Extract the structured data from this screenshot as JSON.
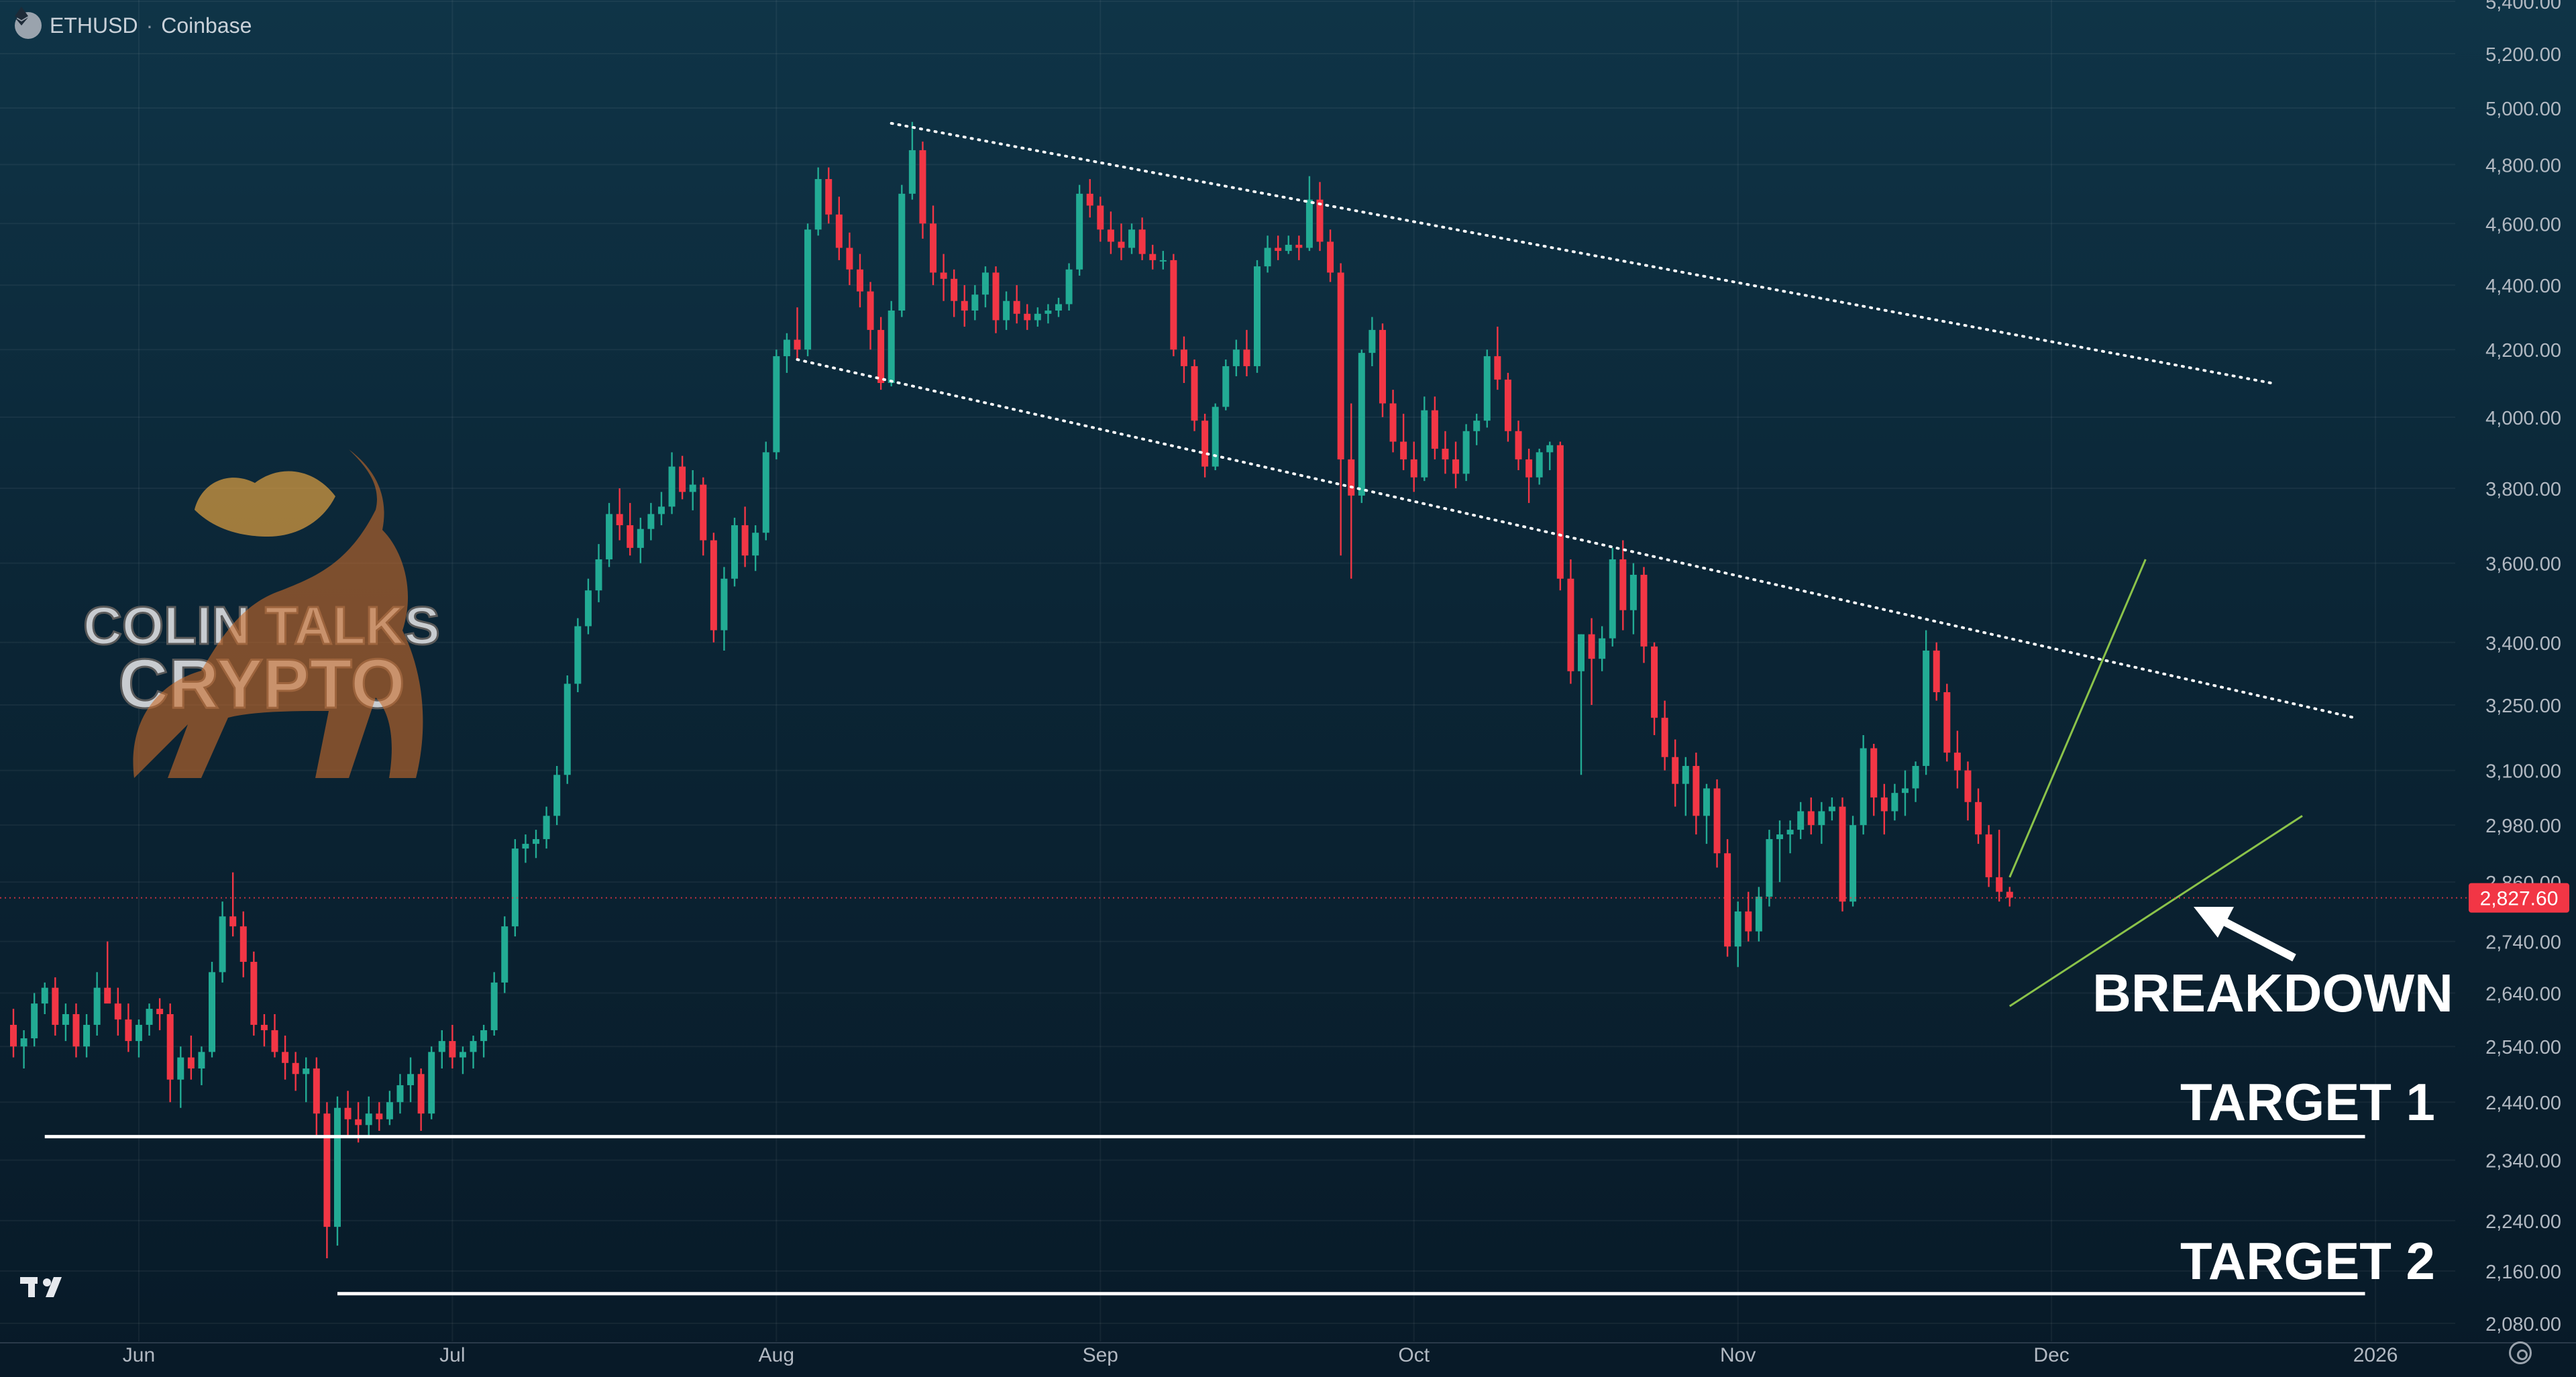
{
  "header": {
    "symbol": "ETHUSD",
    "separator": "·",
    "exchange": "Coinbase",
    "icon": "ethereum-icon"
  },
  "watermark": {
    "line1": "COLIN TALKS",
    "line2": "CRYPTO"
  },
  "annotations": {
    "breakdown": "BREAKDOWN",
    "target1": "TARGET 1",
    "target2": "TARGET 2"
  },
  "colors": {
    "up": "#22ab94",
    "down": "#f23645",
    "wedge": "#8bc34a",
    "price_tag": "#f23645"
  },
  "chart_data": {
    "type": "candlestick",
    "title": "",
    "y_scale": "log",
    "ylim": [
      2080,
      5400
    ],
    "current_price": 2827.6,
    "current_price_label": "2,827.60",
    "y_ticks": [
      5400,
      5200,
      5000,
      4800,
      4600,
      4400,
      4200,
      4000,
      3800,
      3600,
      3400,
      3250,
      3100,
      2980,
      2860,
      2740,
      2640,
      2540,
      2440,
      2340,
      2240,
      2160,
      2080
    ],
    "y_tick_labels": [
      "5,400.00",
      "5,200.00",
      "5,000.00",
      "4,800.00",
      "4,600.00",
      "4,400.00",
      "4,200.00",
      "4,000.00",
      "3,800.00",
      "3,600.00",
      "3,400.00",
      "3,250.00",
      "3,100.00",
      "2,980.00",
      "2,860.00",
      "2,740.00",
      "2,640.00",
      "2,540.00",
      "2,440.00",
      "2,340.00",
      "2,240.00",
      "2,160.00",
      "2,080.00"
    ],
    "x_labels": [
      {
        "label": "Jun",
        "date": "2025-06-01"
      },
      {
        "label": "Jul",
        "date": "2025-07-01"
      },
      {
        "label": "Aug",
        "date": "2025-08-01"
      },
      {
        "label": "Sep",
        "date": "2025-09-01"
      },
      {
        "label": "Oct",
        "date": "2025-10-01"
      },
      {
        "label": "Nov",
        "date": "2025-11-01"
      },
      {
        "label": "Dec",
        "date": "2025-12-01"
      },
      {
        "label": "2026",
        "date": "2026-01-01"
      }
    ],
    "start_date": "2025-05-20",
    "ohlc": [
      [
        2580,
        2610,
        2520,
        2540
      ],
      [
        2540,
        2570,
        2500,
        2555
      ],
      [
        2555,
        2640,
        2540,
        2620
      ],
      [
        2620,
        2660,
        2600,
        2650
      ],
      [
        2650,
        2670,
        2560,
        2580
      ],
      [
        2580,
        2620,
        2550,
        2600
      ],
      [
        2600,
        2620,
        2520,
        2540
      ],
      [
        2540,
        2600,
        2520,
        2580
      ],
      [
        2580,
        2680,
        2560,
        2650
      ],
      [
        2650,
        2740,
        2630,
        2620
      ],
      [
        2620,
        2650,
        2560,
        2590
      ],
      [
        2590,
        2620,
        2530,
        2550
      ],
      [
        2550,
        2590,
        2520,
        2580
      ],
      [
        2580,
        2620,
        2560,
        2610
      ],
      [
        2610,
        2630,
        2570,
        2600
      ],
      [
        2600,
        2620,
        2440,
        2480
      ],
      [
        2480,
        2540,
        2430,
        2520
      ],
      [
        2520,
        2560,
        2480,
        2500
      ],
      [
        2500,
        2540,
        2470,
        2530
      ],
      [
        2530,
        2700,
        2520,
        2680
      ],
      [
        2680,
        2820,
        2660,
        2790
      ],
      [
        2790,
        2880,
        2750,
        2770
      ],
      [
        2770,
        2800,
        2670,
        2700
      ],
      [
        2700,
        2720,
        2560,
        2580
      ],
      [
        2580,
        2600,
        2540,
        2570
      ],
      [
        2570,
        2600,
        2520,
        2530
      ],
      [
        2530,
        2560,
        2480,
        2510
      ],
      [
        2510,
        2530,
        2460,
        2490
      ],
      [
        2490,
        2520,
        2440,
        2500
      ],
      [
        2500,
        2520,
        2380,
        2420
      ],
      [
        2420,
        2440,
        2180,
        2230
      ],
      [
        2230,
        2450,
        2200,
        2430
      ],
      [
        2430,
        2460,
        2380,
        2410
      ],
      [
        2410,
        2440,
        2370,
        2400
      ],
      [
        2400,
        2450,
        2380,
        2420
      ],
      [
        2420,
        2440,
        2390,
        2410
      ],
      [
        2410,
        2460,
        2400,
        2440
      ],
      [
        2440,
        2490,
        2420,
        2470
      ],
      [
        2470,
        2520,
        2440,
        2490
      ],
      [
        2490,
        2500,
        2390,
        2420
      ],
      [
        2420,
        2540,
        2410,
        2530
      ],
      [
        2530,
        2570,
        2500,
        2550
      ],
      [
        2550,
        2580,
        2500,
        2520
      ],
      [
        2520,
        2540,
        2490,
        2530
      ],
      [
        2530,
        2560,
        2500,
        2550
      ],
      [
        2550,
        2580,
        2520,
        2570
      ],
      [
        2570,
        2680,
        2560,
        2660
      ],
      [
        2660,
        2790,
        2640,
        2770
      ],
      [
        2770,
        2950,
        2750,
        2930
      ],
      [
        2930,
        2960,
        2900,
        2940
      ],
      [
        2940,
        2970,
        2910,
        2950
      ],
      [
        2950,
        3020,
        2930,
        3000
      ],
      [
        3000,
        3110,
        2980,
        3090
      ],
      [
        3090,
        3320,
        3070,
        3300
      ],
      [
        3300,
        3460,
        3280,
        3440
      ],
      [
        3440,
        3560,
        3420,
        3530
      ],
      [
        3530,
        3650,
        3500,
        3610
      ],
      [
        3610,
        3760,
        3590,
        3730
      ],
      [
        3730,
        3800,
        3660,
        3700
      ],
      [
        3700,
        3760,
        3620,
        3640
      ],
      [
        3640,
        3720,
        3600,
        3690
      ],
      [
        3690,
        3760,
        3660,
        3730
      ],
      [
        3730,
        3790,
        3700,
        3750
      ],
      [
        3750,
        3900,
        3730,
        3860
      ],
      [
        3860,
        3890,
        3770,
        3790
      ],
      [
        3790,
        3850,
        3740,
        3810
      ],
      [
        3810,
        3830,
        3620,
        3660
      ],
      [
        3660,
        3680,
        3400,
        3430
      ],
      [
        3430,
        3590,
        3380,
        3560
      ],
      [
        3560,
        3720,
        3540,
        3700
      ],
      [
        3700,
        3750,
        3590,
        3620
      ],
      [
        3620,
        3700,
        3580,
        3680
      ],
      [
        3680,
        3930,
        3660,
        3900
      ],
      [
        3900,
        4200,
        3880,
        4180
      ],
      [
        4180,
        4250,
        4130,
        4230
      ],
      [
        4230,
        4330,
        4170,
        4200
      ],
      [
        4200,
        4600,
        4180,
        4580
      ],
      [
        4580,
        4790,
        4560,
        4750
      ],
      [
        4750,
        4790,
        4600,
        4630
      ],
      [
        4630,
        4690,
        4480,
        4520
      ],
      [
        4520,
        4570,
        4400,
        4450
      ],
      [
        4450,
        4500,
        4330,
        4380
      ],
      [
        4380,
        4410,
        4200,
        4260
      ],
      [
        4260,
        4300,
        4080,
        4100
      ],
      [
        4100,
        4350,
        4090,
        4320
      ],
      [
        4320,
        4730,
        4300,
        4700
      ],
      [
        4700,
        4950,
        4680,
        4850
      ],
      [
        4850,
        4880,
        4550,
        4600
      ],
      [
        4600,
        4660,
        4400,
        4440
      ],
      [
        4440,
        4500,
        4350,
        4420
      ],
      [
        4420,
        4450,
        4300,
        4350
      ],
      [
        4350,
        4400,
        4270,
        4320
      ],
      [
        4320,
        4400,
        4290,
        4370
      ],
      [
        4370,
        4460,
        4330,
        4440
      ],
      [
        4440,
        4460,
        4250,
        4290
      ],
      [
        4290,
        4380,
        4260,
        4350
      ],
      [
        4350,
        4400,
        4280,
        4310
      ],
      [
        4310,
        4340,
        4260,
        4290
      ],
      [
        4290,
        4330,
        4270,
        4310
      ],
      [
        4310,
        4340,
        4280,
        4320
      ],
      [
        4320,
        4360,
        4300,
        4340
      ],
      [
        4340,
        4470,
        4320,
        4450
      ],
      [
        4450,
        4730,
        4430,
        4700
      ],
      [
        4700,
        4750,
        4620,
        4660
      ],
      [
        4660,
        4690,
        4540,
        4580
      ],
      [
        4580,
        4640,
        4500,
        4540
      ],
      [
        4540,
        4600,
        4480,
        4520
      ],
      [
        4520,
        4600,
        4500,
        4580
      ],
      [
        4580,
        4620,
        4480,
        4500
      ],
      [
        4500,
        4530,
        4450,
        4480
      ],
      [
        4480,
        4510,
        4450,
        4480
      ],
      [
        4480,
        4500,
        4180,
        4200
      ],
      [
        4200,
        4240,
        4100,
        4150
      ],
      [
        4150,
        4170,
        3960,
        3990
      ],
      [
        3990,
        4010,
        3830,
        3860
      ],
      [
        3860,
        4040,
        3850,
        4030
      ],
      [
        4030,
        4170,
        4020,
        4150
      ],
      [
        4150,
        4230,
        4120,
        4200
      ],
      [
        4200,
        4260,
        4120,
        4150
      ],
      [
        4150,
        4480,
        4130,
        4460
      ],
      [
        4460,
        4560,
        4440,
        4520
      ],
      [
        4520,
        4560,
        4480,
        4510
      ],
      [
        4510,
        4560,
        4500,
        4530
      ],
      [
        4530,
        4560,
        4480,
        4520
      ],
      [
        4520,
        4760,
        4510,
        4680
      ],
      [
        4680,
        4740,
        4510,
        4540
      ],
      [
        4540,
        4580,
        4410,
        4440
      ],
      [
        4440,
        4470,
        3620,
        3880
      ],
      [
        3880,
        4040,
        3560,
        3780
      ],
      [
        3780,
        4200,
        3760,
        4190
      ],
      [
        4190,
        4300,
        4150,
        4260
      ],
      [
        4260,
        4280,
        4000,
        4040
      ],
      [
        4040,
        4080,
        3900,
        3930
      ],
      [
        3930,
        4010,
        3850,
        3880
      ],
      [
        3880,
        3930,
        3790,
        3830
      ],
      [
        3830,
        4060,
        3820,
        4020
      ],
      [
        4020,
        4060,
        3880,
        3910
      ],
      [
        3910,
        3960,
        3840,
        3880
      ],
      [
        3880,
        3930,
        3800,
        3840
      ],
      [
        3840,
        3980,
        3820,
        3960
      ],
      [
        3960,
        4010,
        3920,
        3990
      ],
      [
        3990,
        4200,
        3970,
        4180
      ],
      [
        4180,
        4270,
        4080,
        4110
      ],
      [
        4110,
        4130,
        3930,
        3960
      ],
      [
        3960,
        3990,
        3850,
        3880
      ],
      [
        3880,
        3910,
        3760,
        3830
      ],
      [
        3830,
        3910,
        3810,
        3900
      ],
      [
        3900,
        3930,
        3850,
        3920
      ],
      [
        3920,
        3930,
        3530,
        3560
      ],
      [
        3560,
        3610,
        3300,
        3330
      ],
      [
        3330,
        3420,
        3090,
        3420
      ],
      [
        3420,
        3460,
        3250,
        3360
      ],
      [
        3360,
        3440,
        3330,
        3410
      ],
      [
        3410,
        3640,
        3390,
        3610
      ],
      [
        3610,
        3660,
        3430,
        3480
      ],
      [
        3480,
        3600,
        3420,
        3570
      ],
      [
        3570,
        3590,
        3350,
        3390
      ],
      [
        3390,
        3400,
        3180,
        3220
      ],
      [
        3220,
        3260,
        3100,
        3130
      ],
      [
        3130,
        3170,
        3020,
        3070
      ],
      [
        3070,
        3130,
        3000,
        3110
      ],
      [
        3110,
        3140,
        2960,
        3000
      ],
      [
        3000,
        3070,
        2940,
        3060
      ],
      [
        3060,
        3080,
        2890,
        2920
      ],
      [
        2920,
        2950,
        2710,
        2730
      ],
      [
        2730,
        2820,
        2690,
        2800
      ],
      [
        2800,
        2840,
        2740,
        2760
      ],
      [
        2760,
        2850,
        2740,
        2830
      ],
      [
        2830,
        2970,
        2810,
        2950
      ],
      [
        2950,
        2990,
        2860,
        2960
      ],
      [
        2960,
        2990,
        2920,
        2970
      ],
      [
        2970,
        3030,
        2950,
        3010
      ],
      [
        3010,
        3040,
        2960,
        2980
      ],
      [
        2980,
        3030,
        2940,
        3010
      ],
      [
        3010,
        3040,
        2990,
        3020
      ],
      [
        3020,
        3040,
        2800,
        2820
      ],
      [
        2820,
        3000,
        2810,
        2980
      ],
      [
        2980,
        3180,
        2960,
        3150
      ],
      [
        3150,
        3160,
        3000,
        3040
      ],
      [
        3040,
        3070,
        2960,
        3010
      ],
      [
        3010,
        3070,
        2990,
        3050
      ],
      [
        3050,
        3100,
        3000,
        3060
      ],
      [
        3060,
        3120,
        3030,
        3110
      ],
      [
        3110,
        3430,
        3090,
        3380
      ],
      [
        3380,
        3400,
        3260,
        3280
      ],
      [
        3280,
        3300,
        3120,
        3140
      ],
      [
        3140,
        3190,
        3060,
        3100
      ],
      [
        3100,
        3120,
        2990,
        3030
      ],
      [
        3030,
        3060,
        2940,
        2960
      ],
      [
        2960,
        2980,
        2850,
        2870
      ],
      [
        2870,
        2970,
        2820,
        2840
      ],
      [
        2840,
        2850,
        2810,
        2828
      ]
    ],
    "series": [
      {
        "values": [
          [
            84,
            4945
          ],
          [
            216,
            4100
          ]
        ],
        "style": "dotted",
        "color": "#ffffff"
      },
      {
        "values": [
          [
            75,
            4170
          ],
          [
            224,
            3220
          ]
        ],
        "style": "dotted",
        "color": "#ffffff"
      },
      {
        "values": [
          [
            191,
            2615
          ],
          [
            219,
            3000
          ]
        ],
        "style": "solid",
        "color": "#8bc34a"
      },
      {
        "values": [
          [
            191,
            2870
          ],
          [
            204,
            3610
          ]
        ],
        "style": "solid",
        "color": "#8bc34a"
      },
      {
        "values": [
          [
            3,
            2380
          ],
          [
            225,
            2380
          ]
        ],
        "style": "solid",
        "color": "#ffffff"
      },
      {
        "values": [
          [
            31,
            2125
          ],
          [
            225,
            2125
          ]
        ],
        "style": "solid",
        "color": "#ffffff"
      }
    ]
  }
}
